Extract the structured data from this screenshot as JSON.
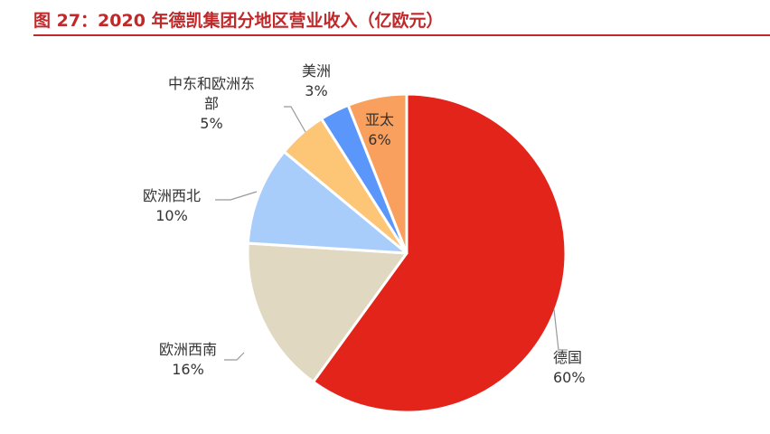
{
  "title": "图 27：2020 年德凯集团分地区营业收入（亿欧元）",
  "chart_data": {
    "type": "pie",
    "title": "图 27：2020 年德凯集团分地区营业收入（亿欧元）",
    "slices": [
      {
        "name": "德国",
        "value": 60,
        "label_lines": [
          "德国",
          "60%"
        ],
        "color": "#e3241b"
      },
      {
        "name": "欧洲西南",
        "value": 16,
        "label_lines": [
          "欧洲西南",
          "16%"
        ],
        "color": "#e0d8c0"
      },
      {
        "name": "欧洲西北",
        "value": 10,
        "label_lines": [
          "欧洲西北",
          "10%"
        ],
        "color": "#a9cdfb"
      },
      {
        "name": "中东和欧洲东部",
        "value": 5,
        "label_lines": [
          "中东和欧洲东",
          "部",
          "5%"
        ],
        "color": "#fdc677"
      },
      {
        "name": "美洲",
        "value": 3,
        "label_lines": [
          "美洲",
          "3%"
        ],
        "color": "#5b97fb"
      },
      {
        "name": "亚太",
        "value": 6,
        "label_lines": [
          "亚太",
          "6%"
        ],
        "color": "#f9a05f"
      }
    ],
    "start_angle": "top",
    "direction": "clockwise",
    "legend": "none",
    "label_lines": true
  }
}
